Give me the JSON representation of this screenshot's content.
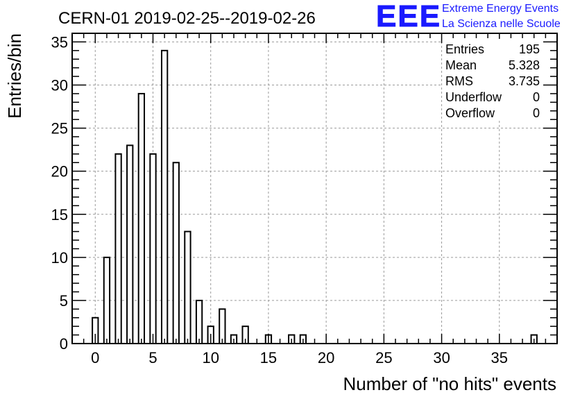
{
  "chart_data": {
    "type": "bar",
    "title": "CERN-01 2019-02-25--2019-02-26",
    "xlabel": "Number of \"no hits\" events",
    "ylabel": "Entries/bin",
    "xlim": [
      -2,
      40
    ],
    "ylim": [
      0,
      36
    ],
    "x_ticks": [
      0,
      5,
      10,
      15,
      20,
      25,
      30,
      35
    ],
    "y_ticks": [
      0,
      5,
      10,
      15,
      20,
      25,
      30,
      35
    ],
    "grid": true,
    "bar_width": 0.5,
    "categories": [
      0,
      1,
      2,
      3,
      4,
      5,
      6,
      7,
      8,
      9,
      10,
      11,
      12,
      13,
      15,
      17,
      18,
      38
    ],
    "values": [
      3,
      10,
      22,
      23,
      29,
      22,
      34,
      21,
      13,
      5,
      2,
      4,
      1,
      2,
      1,
      1,
      1,
      1
    ],
    "stats_box": {
      "placement": "top-right",
      "rows": [
        {
          "label": "Entries",
          "value": "195"
        },
        {
          "label": "Mean",
          "value": "5.328"
        },
        {
          "label": "RMS",
          "value": "3.735"
        },
        {
          "label": "Underflow",
          "value": "0"
        },
        {
          "label": "Overflow",
          "value": "0"
        }
      ]
    }
  },
  "logo": {
    "text": "EEE",
    "line1": "Extreme Energy Events",
    "line2": "La Scienza nelle Scuole",
    "color": "#1a1aff"
  },
  "colors": {
    "bar_fill": "#ffffff",
    "bar_stroke": "#000000",
    "grid": "#9a9a9a",
    "axis": "#000000"
  }
}
